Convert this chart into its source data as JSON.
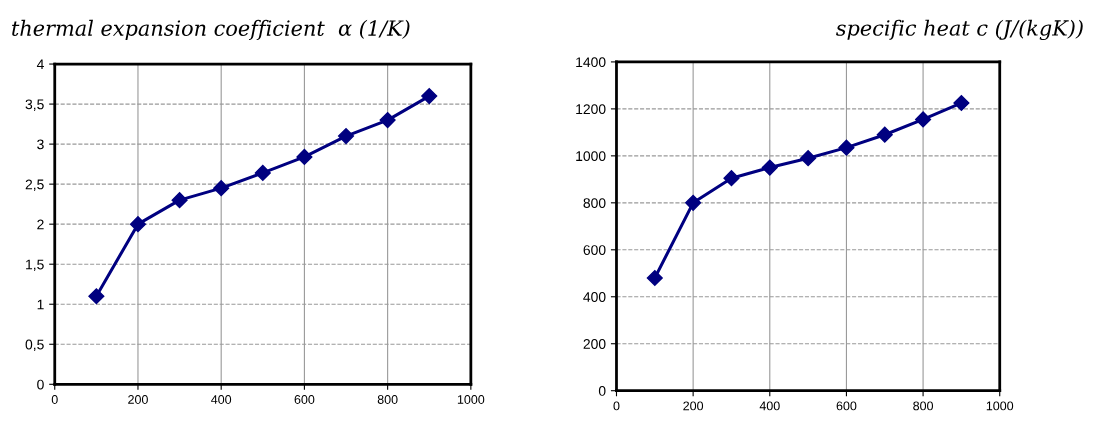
{
  "chart_data": [
    {
      "type": "line",
      "title": "thermal expansion coefficient  α (1/K)",
      "x": [
        100,
        200,
        300,
        400,
        500,
        600,
        700,
        800,
        900
      ],
      "series": [
        {
          "color": "#000080",
          "values": [
            1.1,
            2.0,
            2.3,
            2.45,
            2.64,
            2.84,
            3.1,
            3.3,
            3.6
          ]
        }
      ],
      "xlim": [
        0,
        1000
      ],
      "xticks": [
        0,
        200,
        400,
        600,
        800,
        1000
      ],
      "ylim": [
        0,
        4
      ],
      "yticks": [
        0,
        {
          "value": 0.5,
          "label": "0,5"
        },
        1,
        {
          "value": 1.5,
          "label": "1,5"
        },
        2,
        {
          "value": 2.5,
          "label": "2,5"
        },
        3,
        {
          "value": 3.5,
          "label": "3,5"
        },
        4
      ],
      "grid": true,
      "marker": "diamond",
      "line_style": "solid",
      "legend": false
    },
    {
      "type": "line",
      "title": "specific heat c (J/(kgK))",
      "x": [
        100,
        200,
        300,
        400,
        500,
        600,
        700,
        800,
        900
      ],
      "series": [
        {
          "color": "#000080",
          "values": [
            480,
            800,
            905,
            950,
            990,
            1035,
            1090,
            1155,
            1225
          ]
        }
      ],
      "xlim": [
        0,
        1000
      ],
      "xticks": [
        0,
        200,
        400,
        600,
        800,
        1000
      ],
      "ylim": [
        0,
        1400
      ],
      "yticks": [
        0,
        200,
        400,
        600,
        800,
        1000,
        1200,
        1400
      ],
      "grid": true,
      "marker": "diamond",
      "line_style": "solid",
      "legend": false
    }
  ]
}
